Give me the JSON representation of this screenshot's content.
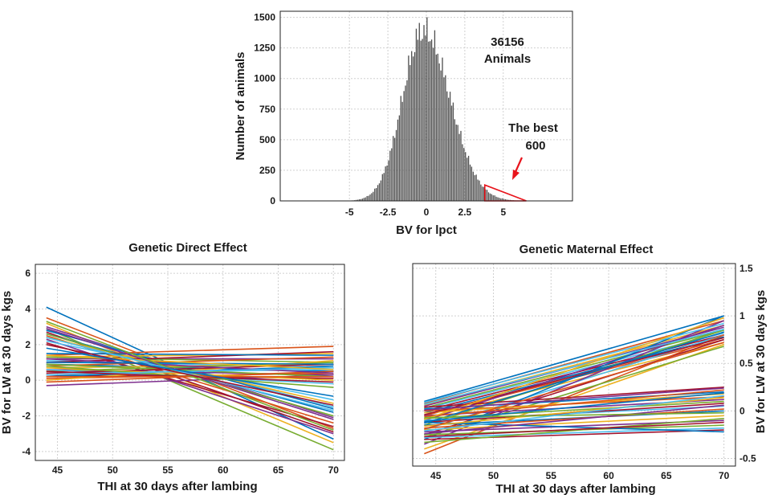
{
  "chart_data": [
    {
      "type": "bar",
      "xlabel": "BV for lpct",
      "ylabel": "Number of animals",
      "xlim": [
        -9.5,
        9.5
      ],
      "ylim": [
        0,
        1550
      ],
      "xticks": [
        -5,
        -2.5,
        0,
        2.5,
        5
      ],
      "xtick_labels": [
        "-5",
        "-2.5",
        "0",
        "2.5",
        "5"
      ],
      "yticks": [
        0,
        250,
        500,
        750,
        1000,
        1250,
        1500
      ],
      "ytick_labels": [
        "0",
        "250",
        "500",
        "750",
        "1000",
        "1250",
        "1500"
      ],
      "grid": true,
      "bin_width": 0.1,
      "distribution": {
        "peak_x": -0.2,
        "peak_count": 1390,
        "sd_left": 1.35,
        "sd_right": 1.75,
        "x_min": -7.5,
        "x_max": 7.0
      },
      "annotations": [
        {
          "text_lines": [
            "36156",
            "Animals"
          ]
        },
        {
          "text_lines": [
            "The best",
            "600"
          ],
          "arrow_color": "#e8141c",
          "highlight_from_x": 3.8,
          "highlight_to_x": 6.5
        }
      ]
    },
    {
      "type": "line",
      "title": "Genetic Direct Effect",
      "xlabel": "THI at 30 days after lambing",
      "ylabel": "BV for LW at 30 days kgs",
      "x": [
        44,
        70
      ],
      "xlim": [
        43,
        71
      ],
      "ylim": [
        -4.5,
        6.5
      ],
      "xticks": [
        45,
        50,
        55,
        60,
        65,
        70
      ],
      "xtick_labels": [
        "45",
        "50",
        "55",
        "60",
        "65",
        "70"
      ],
      "yticks": [
        -4,
        -2,
        0,
        2,
        4,
        6
      ],
      "ytick_labels": [
        "-4",
        "-2",
        "0",
        "2",
        "4",
        "6"
      ],
      "grid": true,
      "series_endpoints": [
        [
          4.1,
          -3.3
        ],
        [
          3.5,
          -2.7
        ],
        [
          3.2,
          -3.5
        ],
        [
          3.0,
          -2.1
        ],
        [
          2.9,
          -3.9
        ],
        [
          2.8,
          -1.5
        ],
        [
          2.7,
          -2.9
        ],
        [
          2.6,
          -1.8
        ],
        [
          2.5,
          -2.4
        ],
        [
          2.4,
          -1.3
        ],
        [
          2.3,
          -3.0
        ],
        [
          2.6,
          -2.0
        ],
        [
          2.2,
          -1.1
        ],
        [
          2.1,
          -2.6
        ],
        [
          2.8,
          -1.6
        ],
        [
          1.4,
          1.9
        ],
        [
          1.3,
          1.5
        ],
        [
          1.2,
          1.2
        ],
        [
          1.3,
          1.0
        ],
        [
          1.1,
          0.7
        ],
        [
          1.0,
          1.6
        ],
        [
          0.9,
          0.5
        ],
        [
          0.8,
          1.3
        ],
        [
          0.7,
          0.9
        ],
        [
          0.6,
          0.3
        ],
        [
          0.5,
          1.0
        ],
        [
          0.4,
          0.6
        ],
        [
          0.3,
          0.1
        ],
        [
          0.2,
          0.8
        ],
        [
          0.1,
          0.4
        ],
        [
          0.0,
          1.1
        ],
        [
          -0.3,
          0.3
        ],
        [
          0.9,
          0.2
        ],
        [
          0.6,
          -0.2
        ],
        [
          0.4,
          0.9
        ],
        [
          1.5,
          1.4
        ],
        [
          -0.1,
          0.5
        ],
        [
          0.7,
          0.0
        ],
        [
          1.2,
          0.4
        ],
        [
          0.8,
          -0.4
        ],
        [
          0.3,
          0.7
        ],
        [
          0.5,
          -0.1
        ],
        [
          1.0,
          0.9
        ],
        [
          0.2,
          0.2
        ],
        [
          1.4,
          0.6
        ],
        [
          2.9,
          -2.2
        ],
        [
          3.3,
          -2.8
        ],
        [
          2.4,
          -1.7
        ],
        [
          2.0,
          -1.4
        ],
        [
          1.8,
          -0.9
        ]
      ]
    },
    {
      "type": "line",
      "title": "Genetic Maternal Effect",
      "xlabel": "THI at 30 days after lambing",
      "ylabel": "BV for LW at 30 days kgs",
      "x": [
        44,
        70
      ],
      "xlim": [
        43,
        71
      ],
      "ylim": [
        -0.58,
        1.55
      ],
      "xticks": [
        45,
        50,
        55,
        60,
        65,
        70
      ],
      "xtick_labels": [
        "45",
        "50",
        "55",
        "60",
        "65",
        "70"
      ],
      "yticks": [
        -0.5,
        0,
        0.5,
        1,
        1.5
      ],
      "ytick_labels": [
        "-0.5",
        "0",
        "0.5",
        "1",
        "1.5"
      ],
      "y_axis_position": "right",
      "grid": true,
      "series_endpoints": [
        [
          0.1,
          1.0
        ],
        [
          0.08,
          0.95
        ],
        [
          0.06,
          0.9
        ],
        [
          0.05,
          0.88
        ],
        [
          0.03,
          0.85
        ],
        [
          0.02,
          0.82
        ],
        [
          0.0,
          0.8
        ],
        [
          -0.02,
          0.78
        ],
        [
          -0.05,
          0.75
        ],
        [
          -0.08,
          0.72
        ],
        [
          -0.1,
          0.9
        ],
        [
          -0.15,
          0.85
        ],
        [
          -0.2,
          0.8
        ],
        [
          -0.25,
          0.75
        ],
        [
          -0.3,
          1.0
        ],
        [
          -0.45,
          0.8
        ],
        [
          -0.4,
          0.7
        ],
        [
          -0.35,
          0.95
        ],
        [
          -0.28,
          0.68
        ],
        [
          0.09,
          0.92
        ],
        [
          0.04,
          0.25
        ],
        [
          0.02,
          0.2
        ],
        [
          0.0,
          0.15
        ],
        [
          -0.02,
          0.18
        ],
        [
          -0.05,
          0.12
        ],
        [
          -0.08,
          0.1
        ],
        [
          -0.1,
          0.05
        ],
        [
          -0.12,
          0.08
        ],
        [
          -0.15,
          0.0
        ],
        [
          -0.18,
          0.02
        ],
        [
          -0.2,
          -0.05
        ],
        [
          -0.22,
          -0.1
        ],
        [
          -0.25,
          -0.15
        ],
        [
          -0.28,
          -0.18
        ],
        [
          -0.3,
          -0.2
        ],
        [
          -0.12,
          -0.22
        ],
        [
          -0.06,
          0.22
        ],
        [
          -0.16,
          0.14
        ],
        [
          -0.24,
          0.06
        ],
        [
          -0.33,
          -0.08
        ],
        [
          0.07,
          0.86
        ],
        [
          -0.04,
          0.77
        ],
        [
          -0.13,
          0.83
        ],
        [
          -0.19,
          0.72
        ],
        [
          -0.09,
          0.98
        ],
        [
          0.01,
          0.24
        ],
        [
          -0.07,
          -0.02
        ],
        [
          -0.21,
          0.16
        ],
        [
          -0.27,
          -0.12
        ],
        [
          -0.11,
          0.19
        ]
      ]
    }
  ],
  "palette": [
    "#0072BD",
    "#D95319",
    "#EDB120",
    "#7E2F8E",
    "#77AC30",
    "#4DBEEE",
    "#A2142F"
  ],
  "bar_color": "#505050",
  "grid_color": "#d0d0d0"
}
